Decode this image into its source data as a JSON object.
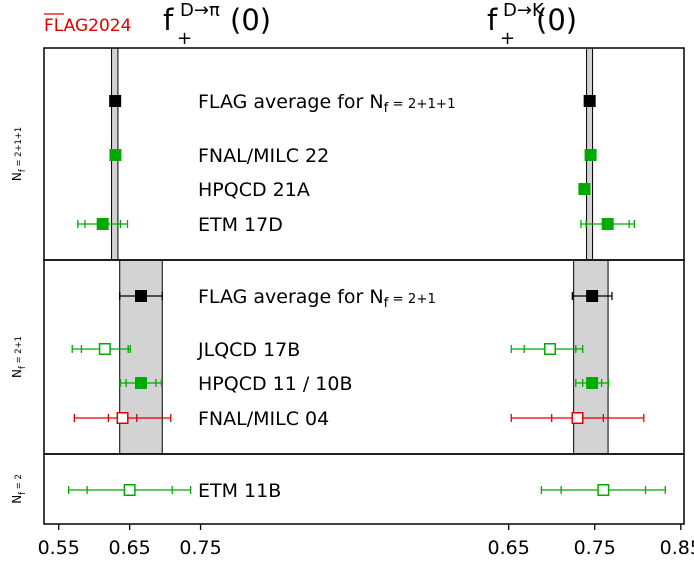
{
  "logo": "FLAG2024",
  "colors": {
    "flag_avg": "#000000",
    "green": "#00aa00",
    "red": "#e00000",
    "band": "#d3d3d3"
  },
  "chart_data": {
    "type": "scatter",
    "panels": [
      {
        "title_main": "f",
        "title_sub": "+",
        "title_sup": "D→π",
        "title_arg": "(0)",
        "xlim": [
          0.525,
          0.8
        ],
        "xticks": [
          0.55,
          0.65,
          0.75
        ],
        "xtick_labels": [
          "0.55",
          "0.65",
          "0.75"
        ]
      },
      {
        "title_main": "f",
        "title_sub": "+",
        "title_sup": "D→K",
        "title_arg": "(0)",
        "xlim": [
          0.54,
          0.87
        ],
        "xticks": [
          0.65,
          0.75,
          0.85
        ],
        "xtick_labels": [
          "0.65",
          "0.75",
          "0.85"
        ]
      }
    ],
    "groups": [
      {
        "label_main": "N",
        "label_sub": "f",
        "label_rest": " = 2+1+1",
        "bands": [
          {
            "panel": 0,
            "low": 0.6245,
            "high": 0.6335
          },
          {
            "panel": 1,
            "low": 0.7405,
            "high": 0.7475
          }
        ]
      },
      {
        "label_main": "N",
        "label_sub": "f",
        "label_rest": " = 2+1",
        "bands": [
          {
            "panel": 0,
            "low": 0.636,
            "high": 0.696
          },
          {
            "panel": 1,
            "low": 0.7255,
            "high": 0.7655
          }
        ]
      },
      {
        "label_main": "N",
        "label_sub": "f",
        "label_rest": " = 2",
        "bands": []
      }
    ],
    "rows": [
      {
        "label_main": "FLAG average for N",
        "label_sub": "f",
        "label_rest": " = 2+1+1",
        "group": 0,
        "series": "FLAG average",
        "marker": "square-filled",
        "color": "#000000",
        "points": [
          {
            "panel": 0,
            "value": 0.6296
          },
          {
            "panel": 1,
            "value": 0.7441
          }
        ]
      },
      {
        "label_main": "FNAL/MILC 22",
        "label_sub": "",
        "label_rest": "",
        "group": 0,
        "series": "lattice",
        "marker": "square-filled",
        "color": "#00aa00",
        "points": [
          {
            "panel": 0,
            "value": 0.63
          },
          {
            "panel": 1,
            "value": 0.7452
          }
        ]
      },
      {
        "label_main": "HPQCD 21A",
        "label_sub": "",
        "label_rest": "",
        "group": 0,
        "series": "lattice",
        "marker": "square-filled",
        "color": "#00aa00",
        "points": [
          {
            "panel": 1,
            "value": 0.738
          }
        ]
      },
      {
        "label_main": "ETM 17D",
        "label_sub": "",
        "label_rest": "",
        "group": 0,
        "series": "lattice",
        "marker": "square-filled",
        "color": "#00aa00",
        "points": [
          {
            "panel": 0,
            "value": 0.612,
            "err_low": 0.035,
            "err_high": 0.035,
            "err_stat": 0.025
          },
          {
            "panel": 1,
            "value": 0.765,
            "err_low": 0.031,
            "err_high": 0.031,
            "err_stat": 0.025
          }
        ]
      },
      {
        "label_main": "FLAG average for N",
        "label_sub": "f",
        "label_rest": " = 2+1",
        "group": 1,
        "series": "FLAG average",
        "marker": "square-filled",
        "color": "#000000",
        "points": [
          {
            "panel": 0,
            "value": 0.666,
            "err_low": 0.03,
            "err_high": 0.03
          },
          {
            "panel": 1,
            "value": 0.747,
            "err_low": 0.023,
            "err_high": 0.023
          }
        ]
      },
      {
        "label_main": "JLQCD 17B",
        "label_sub": "",
        "label_rest": "",
        "group": 1,
        "series": "lattice",
        "marker": "square-open",
        "color": "#00aa00",
        "points": [
          {
            "panel": 0,
            "value": 0.615,
            "err_low": 0.046,
            "err_high": 0.036,
            "err_stat": 0.033
          },
          {
            "panel": 1,
            "value": 0.698,
            "err_low": 0.045,
            "err_high": 0.038,
            "err_stat": 0.03
          }
        ]
      },
      {
        "label_main": "HPQCD 11 / 10B",
        "label_sub": "",
        "label_rest": "",
        "group": 1,
        "series": "lattice",
        "marker": "square-filled",
        "color": "#00aa00",
        "points": [
          {
            "panel": 0,
            "value": 0.666,
            "err_low": 0.029,
            "err_high": 0.029,
            "err_stat": 0.021
          },
          {
            "panel": 1,
            "value": 0.747,
            "err_low": 0.019,
            "err_high": 0.019,
            "err_stat": 0.011
          }
        ]
      },
      {
        "label_main": "FNAL/MILC 04",
        "label_sub": "",
        "label_rest": "",
        "group": 1,
        "series": "lattice",
        "marker": "square-open",
        "color": "#e00000",
        "points": [
          {
            "panel": 0,
            "value": 0.64,
            "err_low": 0.068,
            "err_high": 0.068,
            "err_stat": 0.02
          },
          {
            "panel": 1,
            "value": 0.73,
            "err_low": 0.077,
            "err_high": 0.077,
            "err_stat": 0.03
          }
        ]
      },
      {
        "label_main": "ETM 11B",
        "label_sub": "",
        "label_rest": "",
        "group": 2,
        "series": "lattice",
        "marker": "square-open",
        "color": "#00aa00",
        "points": [
          {
            "panel": 0,
            "value": 0.65,
            "err_low": 0.086,
            "err_high": 0.086,
            "err_stat": 0.06
          },
          {
            "panel": 1,
            "value": 0.76,
            "err_low": 0.072,
            "err_high": 0.072,
            "err_stat": 0.049
          }
        ]
      }
    ]
  }
}
